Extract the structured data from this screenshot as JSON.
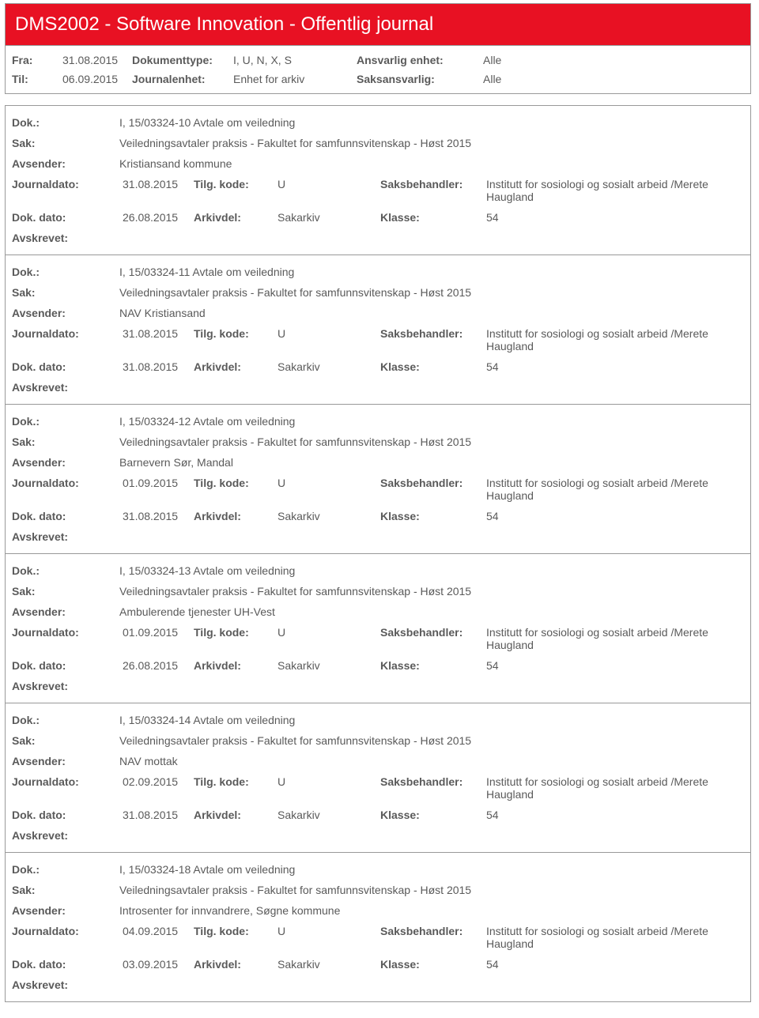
{
  "header": {
    "title": "DMS2002 - Software Innovation - Offentlig journal"
  },
  "filters": {
    "fra_label": "Fra:",
    "fra_value": "31.08.2015",
    "til_label": "Til:",
    "til_value": "06.09.2015",
    "dokumenttype_label": "Dokumenttype:",
    "dokumenttype_value": "I, U, N, X, S",
    "journalenhet_label": "Journalenhet:",
    "journalenhet_value": "Enhet for arkiv",
    "ansvarlig_enhet_label": "Ansvarlig enhet:",
    "ansvarlig_enhet_value": "Alle",
    "saksansvarlig_label": "Saksansvarlig:",
    "saksansvarlig_value": "Alle"
  },
  "labels": {
    "dok": "Dok.:",
    "sak": "Sak:",
    "avsender": "Avsender:",
    "journaldato": "Journaldato:",
    "tilg_kode": "Tilg. kode:",
    "saksbehandler": "Saksbehandler:",
    "dok_dato": "Dok. dato:",
    "arkivdel": "Arkivdel:",
    "klasse": "Klasse:",
    "avskrevet": "Avskrevet:"
  },
  "entries": [
    {
      "dok": "I, 15/03324-10 Avtale om veiledning",
      "sak": "Veiledningsavtaler praksis - Fakultet for samfunnsvitenskap - Høst 2015",
      "avsender": "Kristiansand kommune",
      "journaldato": "31.08.2015",
      "tilg_kode": "U",
      "saksbehandler": "Institutt for sosiologi og sosialt arbeid /Merete Haugland",
      "dok_dato": "26.08.2015",
      "arkivdel": "Sakarkiv",
      "klasse": "54"
    },
    {
      "dok": "I, 15/03324-11 Avtale om veiledning",
      "sak": "Veiledningsavtaler praksis - Fakultet for samfunnsvitenskap - Høst 2015",
      "avsender": "NAV Kristiansand",
      "journaldato": "31.08.2015",
      "tilg_kode": "U",
      "saksbehandler": "Institutt for sosiologi og sosialt arbeid /Merete Haugland",
      "dok_dato": "31.08.2015",
      "arkivdel": "Sakarkiv",
      "klasse": "54"
    },
    {
      "dok": "I, 15/03324-12 Avtale om veiledning",
      "sak": "Veiledningsavtaler praksis - Fakultet for samfunnsvitenskap - Høst 2015",
      "avsender": "Barnevern Sør, Mandal",
      "journaldato": "01.09.2015",
      "tilg_kode": "U",
      "saksbehandler": "Institutt for sosiologi og sosialt arbeid /Merete Haugland",
      "dok_dato": "31.08.2015",
      "arkivdel": "Sakarkiv",
      "klasse": "54"
    },
    {
      "dok": "I, 15/03324-13 Avtale om veiledning",
      "sak": "Veiledningsavtaler praksis - Fakultet for samfunnsvitenskap - Høst 2015",
      "avsender": "Ambulerende tjenester UH-Vest",
      "journaldato": "01.09.2015",
      "tilg_kode": "U",
      "saksbehandler": "Institutt for sosiologi og sosialt arbeid /Merete Haugland",
      "dok_dato": "26.08.2015",
      "arkivdel": "Sakarkiv",
      "klasse": "54"
    },
    {
      "dok": "I, 15/03324-14 Avtale om veiledning",
      "sak": "Veiledningsavtaler praksis - Fakultet for samfunnsvitenskap - Høst 2015",
      "avsender": "NAV mottak",
      "journaldato": "02.09.2015",
      "tilg_kode": "U",
      "saksbehandler": "Institutt for sosiologi og sosialt arbeid /Merete Haugland",
      "dok_dato": "31.08.2015",
      "arkivdel": "Sakarkiv",
      "klasse": "54"
    },
    {
      "dok": "I, 15/03324-18 Avtale om veiledning",
      "sak": "Veiledningsavtaler praksis - Fakultet for samfunnsvitenskap - Høst 2015",
      "avsender": "Introsenter for innvandrere, Søgne kommune",
      "journaldato": "04.09.2015",
      "tilg_kode": "U",
      "saksbehandler": "Institutt for sosiologi og sosialt arbeid /Merete Haugland",
      "dok_dato": "03.09.2015",
      "arkivdel": "Sakarkiv",
      "klasse": "54"
    }
  ]
}
